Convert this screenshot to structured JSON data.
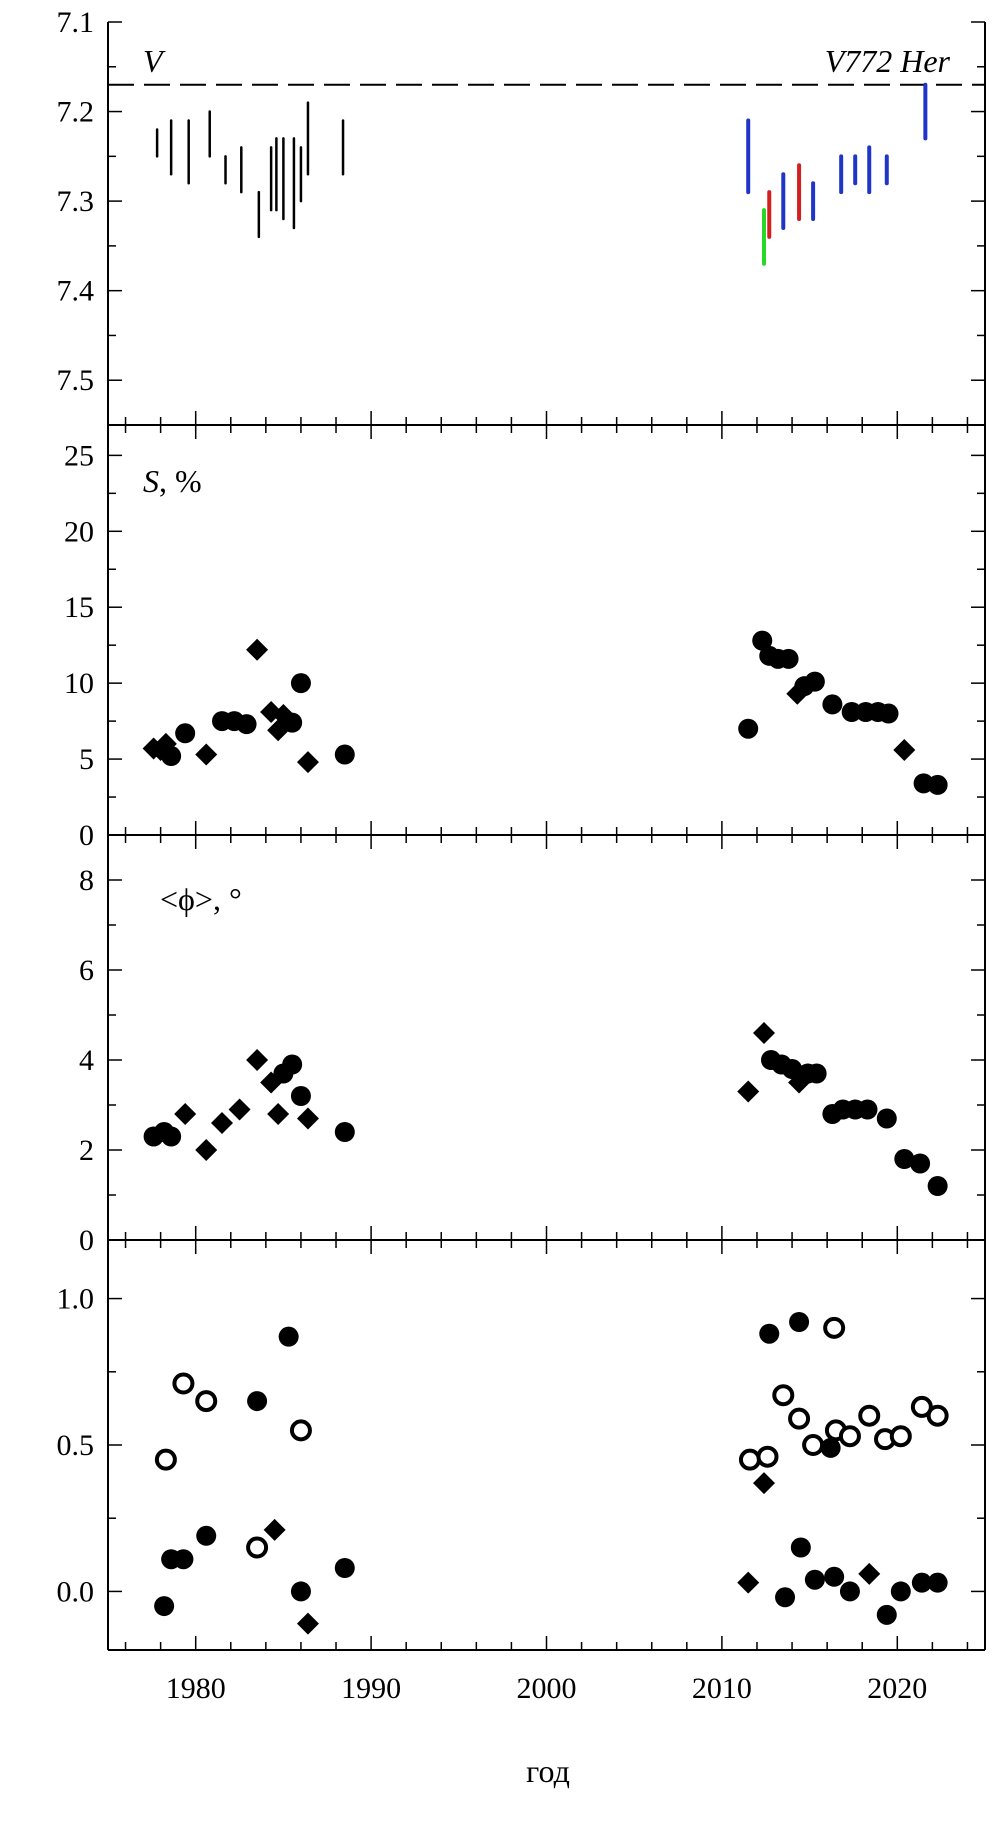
{
  "x_axis": {
    "label": "год",
    "ticks": [
      "1980",
      "1990",
      "2000",
      "2010",
      "2020"
    ],
    "range": [
      1975,
      2025
    ]
  },
  "chart_data": [
    {
      "type": "scatter",
      "panel": "V",
      "label_italic": "V",
      "object_label": "V772 Her",
      "ylim": [
        7.55,
        7.1
      ],
      "y_inverted": true,
      "yticks": [
        "7.1",
        "7.2",
        "7.3",
        "7.4",
        "7.5"
      ],
      "reference_line": {
        "y": 7.17,
        "style": "dashed"
      },
      "colors": {
        "black": "#000000",
        "blue": "#1f35c8",
        "red": "#d21f1f",
        "green": "#28d828"
      },
      "bars": [
        {
          "x": 1977.8,
          "y1": 7.22,
          "y2": 7.25,
          "color": "black"
        },
        {
          "x": 1978.6,
          "y1": 7.21,
          "y2": 7.27,
          "color": "black"
        },
        {
          "x": 1979.6,
          "y1": 7.21,
          "y2": 7.28,
          "color": "black"
        },
        {
          "x": 1980.8,
          "y1": 7.2,
          "y2": 7.25,
          "color": "black"
        },
        {
          "x": 1981.7,
          "y1": 7.25,
          "y2": 7.28,
          "color": "black"
        },
        {
          "x": 1982.6,
          "y1": 7.24,
          "y2": 7.29,
          "color": "black"
        },
        {
          "x": 1983.6,
          "y1": 7.29,
          "y2": 7.34,
          "color": "black"
        },
        {
          "x": 1984.3,
          "y1": 7.24,
          "y2": 7.31,
          "color": "black"
        },
        {
          "x": 1984.6,
          "y1": 7.23,
          "y2": 7.31,
          "color": "black"
        },
        {
          "x": 1985.0,
          "y1": 7.23,
          "y2": 7.32,
          "color": "black"
        },
        {
          "x": 1985.6,
          "y1": 7.23,
          "y2": 7.33,
          "color": "black"
        },
        {
          "x": 1986.0,
          "y1": 7.24,
          "y2": 7.3,
          "color": "black"
        },
        {
          "x": 1986.4,
          "y1": 7.19,
          "y2": 7.27,
          "color": "black"
        },
        {
          "x": 1988.4,
          "y1": 7.21,
          "y2": 7.27,
          "color": "black"
        },
        {
          "x": 2011.5,
          "y1": 7.21,
          "y2": 7.29,
          "color": "blue"
        },
        {
          "x": 2012.4,
          "y1": 7.31,
          "y2": 7.37,
          "color": "green"
        },
        {
          "x": 2012.7,
          "y1": 7.29,
          "y2": 7.34,
          "color": "red"
        },
        {
          "x": 2013.5,
          "y1": 7.27,
          "y2": 7.33,
          "color": "blue"
        },
        {
          "x": 2014.4,
          "y1": 7.26,
          "y2": 7.32,
          "color": "red"
        },
        {
          "x": 2015.2,
          "y1": 7.28,
          "y2": 7.32,
          "color": "blue"
        },
        {
          "x": 2016.8,
          "y1": 7.25,
          "y2": 7.29,
          "color": "blue"
        },
        {
          "x": 2017.6,
          "y1": 7.25,
          "y2": 7.28,
          "color": "blue"
        },
        {
          "x": 2018.4,
          "y1": 7.24,
          "y2": 7.29,
          "color": "blue"
        },
        {
          "x": 2019.4,
          "y1": 7.25,
          "y2": 7.28,
          "color": "blue"
        },
        {
          "x": 2021.6,
          "y1": 7.17,
          "y2": 7.23,
          "color": "blue"
        }
      ]
    },
    {
      "type": "scatter",
      "panel": "S",
      "label_italic": "S",
      "label_rest": ", %",
      "ylim": [
        0,
        27
      ],
      "yticks": [
        "0",
        "5",
        "10",
        "15",
        "20",
        "25"
      ],
      "points": [
        {
          "x": 1977.6,
          "y": 5.7,
          "m": "d"
        },
        {
          "x": 1978.0,
          "y": 5.6,
          "m": "d"
        },
        {
          "x": 1978.3,
          "y": 6.0,
          "m": "d"
        },
        {
          "x": 1978.6,
          "y": 5.2,
          "m": "o"
        },
        {
          "x": 1979.4,
          "y": 6.7,
          "m": "o"
        },
        {
          "x": 1980.6,
          "y": 5.3,
          "m": "d"
        },
        {
          "x": 1981.5,
          "y": 7.5,
          "m": "o"
        },
        {
          "x": 1982.2,
          "y": 7.5,
          "m": "o"
        },
        {
          "x": 1982.9,
          "y": 7.3,
          "m": "o"
        },
        {
          "x": 1983.5,
          "y": 12.2,
          "m": "d"
        },
        {
          "x": 1984.3,
          "y": 8.1,
          "m": "d"
        },
        {
          "x": 1984.7,
          "y": 6.9,
          "m": "d"
        },
        {
          "x": 1985.0,
          "y": 7.9,
          "m": "d"
        },
        {
          "x": 1985.5,
          "y": 7.4,
          "m": "o"
        },
        {
          "x": 1986.0,
          "y": 10.0,
          "m": "o"
        },
        {
          "x": 1986.4,
          "y": 4.8,
          "m": "d"
        },
        {
          "x": 1988.5,
          "y": 5.3,
          "m": "o"
        },
        {
          "x": 2011.5,
          "y": 7.0,
          "m": "o"
        },
        {
          "x": 2012.3,
          "y": 12.8,
          "m": "o"
        },
        {
          "x": 2012.7,
          "y": 11.8,
          "m": "o"
        },
        {
          "x": 2013.2,
          "y": 11.6,
          "m": "o"
        },
        {
          "x": 2013.8,
          "y": 11.6,
          "m": "o"
        },
        {
          "x": 2014.3,
          "y": 9.3,
          "m": "d"
        },
        {
          "x": 2014.7,
          "y": 9.8,
          "m": "o"
        },
        {
          "x": 2015.3,
          "y": 10.1,
          "m": "o"
        },
        {
          "x": 2016.3,
          "y": 8.6,
          "m": "o"
        },
        {
          "x": 2017.4,
          "y": 8.1,
          "m": "o"
        },
        {
          "x": 2018.2,
          "y": 8.1,
          "m": "o"
        },
        {
          "x": 2018.9,
          "y": 8.1,
          "m": "o"
        },
        {
          "x": 2019.5,
          "y": 8.0,
          "m": "o"
        },
        {
          "x": 2020.4,
          "y": 5.6,
          "m": "d"
        },
        {
          "x": 2021.5,
          "y": 3.4,
          "m": "o"
        },
        {
          "x": 2022.3,
          "y": 3.3,
          "m": "o"
        }
      ]
    },
    {
      "type": "scatter",
      "panel": "phi",
      "label": "<ϕ>, °",
      "ylim": [
        0,
        9
      ],
      "yticks": [
        "0",
        "2",
        "4",
        "6",
        "8"
      ],
      "points": [
        {
          "x": 1977.6,
          "y": 2.3,
          "m": "o"
        },
        {
          "x": 1978.2,
          "y": 2.4,
          "m": "o"
        },
        {
          "x": 1978.6,
          "y": 2.3,
          "m": "o"
        },
        {
          "x": 1979.4,
          "y": 2.8,
          "m": "d"
        },
        {
          "x": 1980.6,
          "y": 2.0,
          "m": "d"
        },
        {
          "x": 1981.5,
          "y": 2.6,
          "m": "d"
        },
        {
          "x": 1982.5,
          "y": 2.9,
          "m": "d"
        },
        {
          "x": 1983.5,
          "y": 4.0,
          "m": "d"
        },
        {
          "x": 1984.3,
          "y": 3.5,
          "m": "d"
        },
        {
          "x": 1984.7,
          "y": 2.8,
          "m": "d"
        },
        {
          "x": 1985.0,
          "y": 3.7,
          "m": "o"
        },
        {
          "x": 1985.5,
          "y": 3.9,
          "m": "o"
        },
        {
          "x": 1986.0,
          "y": 3.2,
          "m": "o"
        },
        {
          "x": 1986.4,
          "y": 2.7,
          "m": "d"
        },
        {
          "x": 1988.5,
          "y": 2.4,
          "m": "o"
        },
        {
          "x": 2011.5,
          "y": 3.3,
          "m": "d"
        },
        {
          "x": 2012.4,
          "y": 4.6,
          "m": "d"
        },
        {
          "x": 2012.8,
          "y": 4.0,
          "m": "o"
        },
        {
          "x": 2013.4,
          "y": 3.9,
          "m": "o"
        },
        {
          "x": 2014.0,
          "y": 3.8,
          "m": "o"
        },
        {
          "x": 2014.4,
          "y": 3.5,
          "m": "d"
        },
        {
          "x": 2014.9,
          "y": 3.7,
          "m": "o"
        },
        {
          "x": 2015.4,
          "y": 3.7,
          "m": "o"
        },
        {
          "x": 2016.3,
          "y": 2.8,
          "m": "o"
        },
        {
          "x": 2016.9,
          "y": 2.9,
          "m": "o"
        },
        {
          "x": 2017.6,
          "y": 2.9,
          "m": "o"
        },
        {
          "x": 2018.3,
          "y": 2.9,
          "m": "o"
        },
        {
          "x": 2019.4,
          "y": 2.7,
          "m": "o"
        },
        {
          "x": 2020.4,
          "y": 1.8,
          "m": "o"
        },
        {
          "x": 2021.3,
          "y": 1.7,
          "m": "o"
        },
        {
          "x": 2022.3,
          "y": 1.2,
          "m": "o"
        }
      ]
    },
    {
      "type": "scatter",
      "panel": "bottom",
      "ylim": [
        -0.2,
        1.2
      ],
      "yticks": [
        "0.0",
        "0.5",
        "1.0"
      ],
      "points": [
        {
          "x": 1978.2,
          "y": -0.05,
          "m": "o"
        },
        {
          "x": 1978.6,
          "y": 0.11,
          "m": "o"
        },
        {
          "x": 1979.3,
          "y": 0.11,
          "m": "o"
        },
        {
          "x": 1980.6,
          "y": 0.19,
          "m": "o"
        },
        {
          "x": 1983.5,
          "y": 0.65,
          "m": "o"
        },
        {
          "x": 1984.5,
          "y": 0.21,
          "m": "d"
        },
        {
          "x": 1985.3,
          "y": 0.87,
          "m": "o"
        },
        {
          "x": 1986.0,
          "y": 0.0,
          "m": "o"
        },
        {
          "x": 1986.4,
          "y": -0.11,
          "m": "d"
        },
        {
          "x": 1988.5,
          "y": 0.08,
          "m": "o"
        },
        {
          "x": 2011.5,
          "y": 0.03,
          "m": "d"
        },
        {
          "x": 2012.4,
          "y": 0.37,
          "m": "d"
        },
        {
          "x": 2012.7,
          "y": 0.88,
          "m": "o"
        },
        {
          "x": 2013.6,
          "y": -0.02,
          "m": "o"
        },
        {
          "x": 2014.4,
          "y": 0.92,
          "m": "o"
        },
        {
          "x": 2014.5,
          "y": 0.15,
          "m": "o"
        },
        {
          "x": 2015.3,
          "y": 0.04,
          "m": "o"
        },
        {
          "x": 2016.2,
          "y": 0.49,
          "m": "o"
        },
        {
          "x": 2016.4,
          "y": 0.05,
          "m": "o"
        },
        {
          "x": 2017.3,
          "y": 0.0,
          "m": "o"
        },
        {
          "x": 2018.4,
          "y": 0.06,
          "m": "d"
        },
        {
          "x": 2019.4,
          "y": -0.08,
          "m": "o"
        },
        {
          "x": 2020.2,
          "y": 0.0,
          "m": "o"
        },
        {
          "x": 2021.4,
          "y": 0.03,
          "m": "o"
        },
        {
          "x": 2022.3,
          "y": 0.03,
          "m": "o"
        },
        {
          "x": 1978.3,
          "y": 0.45,
          "m": "ho"
        },
        {
          "x": 1979.3,
          "y": 0.71,
          "m": "ho"
        },
        {
          "x": 1980.6,
          "y": 0.65,
          "m": "ho"
        },
        {
          "x": 1983.5,
          "y": 0.15,
          "m": "ho"
        },
        {
          "x": 1986.0,
          "y": 0.55,
          "m": "ho"
        },
        {
          "x": 2011.6,
          "y": 0.45,
          "m": "ho"
        },
        {
          "x": 2012.6,
          "y": 0.46,
          "m": "ho"
        },
        {
          "x": 2013.5,
          "y": 0.67,
          "m": "ho"
        },
        {
          "x": 2014.4,
          "y": 0.59,
          "m": "ho"
        },
        {
          "x": 2015.2,
          "y": 0.5,
          "m": "ho"
        },
        {
          "x": 2016.4,
          "y": 0.9,
          "m": "ho"
        },
        {
          "x": 2016.5,
          "y": 0.55,
          "m": "ho"
        },
        {
          "x": 2017.3,
          "y": 0.53,
          "m": "ho"
        },
        {
          "x": 2018.4,
          "y": 0.6,
          "m": "ho"
        },
        {
          "x": 2019.3,
          "y": 0.52,
          "m": "ho"
        },
        {
          "x": 2020.2,
          "y": 0.53,
          "m": "ho"
        },
        {
          "x": 2021.4,
          "y": 0.63,
          "m": "ho"
        },
        {
          "x": 2022.3,
          "y": 0.6,
          "m": "ho"
        }
      ]
    }
  ]
}
